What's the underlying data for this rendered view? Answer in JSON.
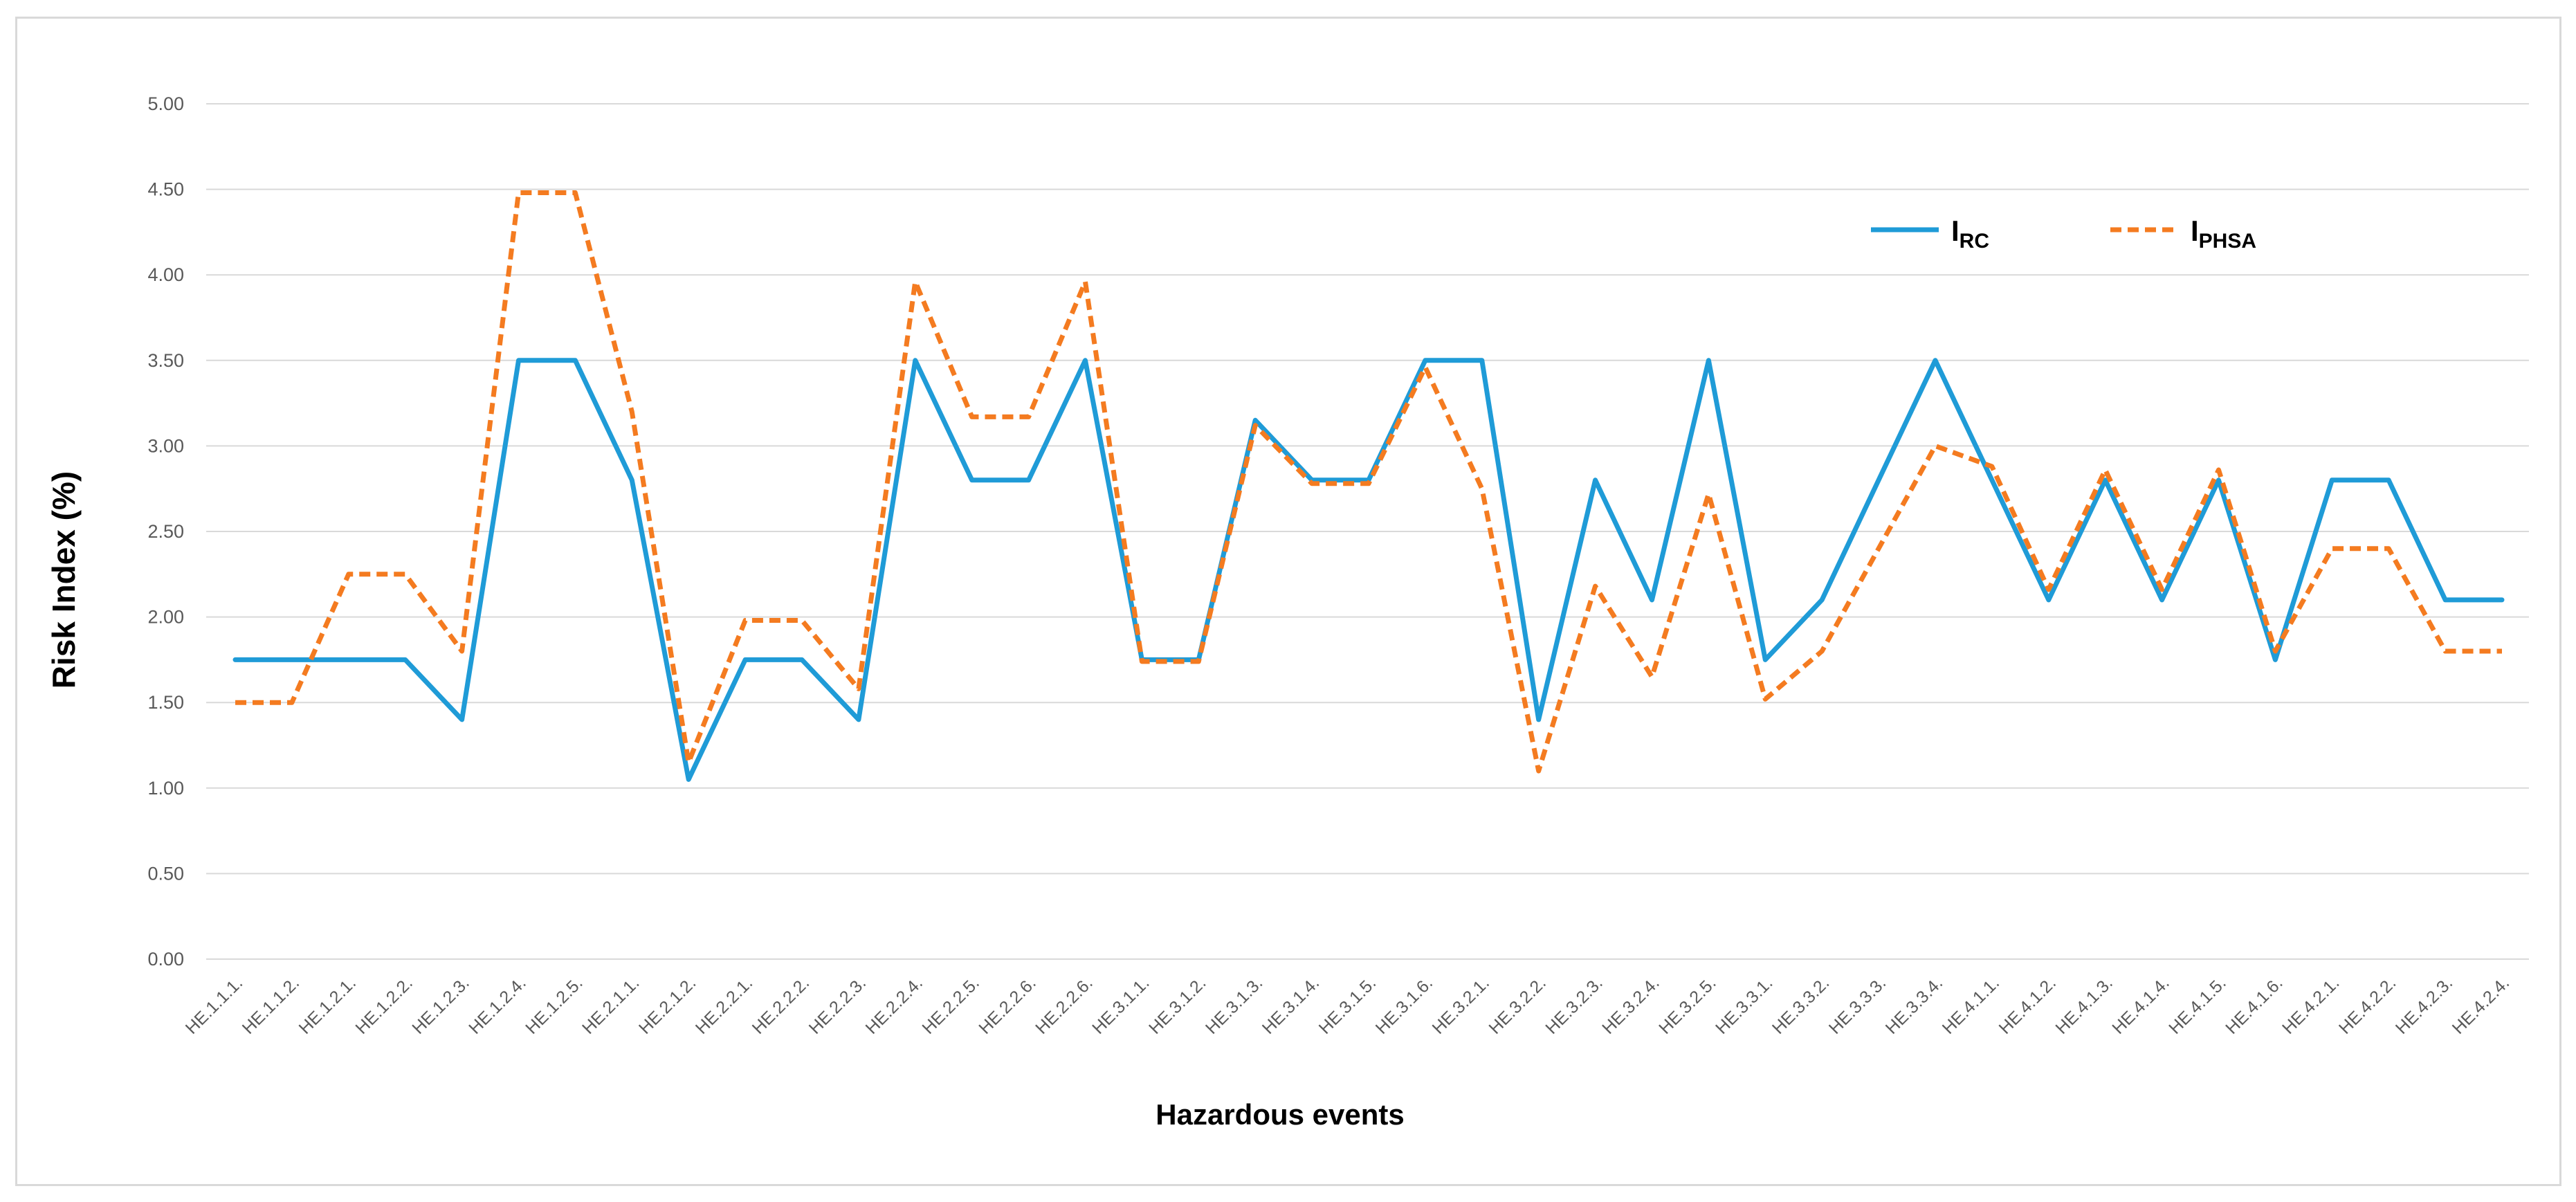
{
  "chart_data": {
    "type": "line",
    "xlabel": "Hazardous events",
    "ylabel": "Risk Index (%)",
    "ylim": [
      0,
      5
    ],
    "yticks": [
      "0.00",
      "0.50",
      "1.00",
      "1.50",
      "2.00",
      "2.50",
      "3.00",
      "3.50",
      "4.00",
      "4.50",
      "5.00"
    ],
    "grid": "horizontal",
    "legend": "top-right",
    "categories": [
      "HE.1.1.1.",
      "HE.1.1.2.",
      "HE.1.2.1.",
      "HE.1.2.2.",
      "HE.1.2.3.",
      "HE.1.2.4.",
      "HE.1.2.5.",
      "HE.2.1.1.",
      "HE.2.1.2.",
      "HE.2.2.1.",
      "HE.2.2.2.",
      "HE.2.2.3.",
      "HE.2.2.4.",
      "HE.2.2.5.",
      "HE.2.2.6.",
      "HE.2.2.6.",
      "HE.3.1.1.",
      "HE.3.1.2.",
      "HE.3.1.3.",
      "HE.3.1.4.",
      "HE.3.1.5.",
      "HE.3.1.6.",
      "HE.3.2.1.",
      "HE.3.2.2.",
      "HE.3.2.3.",
      "HE.3.2.4.",
      "HE.3.2.5.",
      "HE.3.3.1.",
      "HE.3.3.2.",
      "HE.3.3.3.",
      "HE.3.3.4.",
      "HE.4.1.1.",
      "HE.4.1.2.",
      "HE.4.1.3.",
      "HE.4.1.4.",
      "HE.4.1.5.",
      "HE.4.1.6.",
      "HE.4.2.1.",
      "HE.4.2.2.",
      "HE.4.2.3.",
      "HE.4.2.4."
    ],
    "series": [
      {
        "name": "I",
        "name_sub": "RC",
        "color": "#1f9bd7",
        "dash": "solid",
        "values": [
          1.75,
          1.75,
          1.75,
          1.75,
          1.4,
          3.5,
          3.5,
          2.8,
          1.05,
          1.75,
          1.75,
          1.4,
          3.5,
          2.8,
          2.8,
          3.5,
          1.75,
          1.75,
          3.15,
          2.8,
          2.8,
          3.5,
          3.5,
          1.4,
          2.8,
          2.1,
          3.5,
          1.75,
          2.1,
          2.8,
          3.5,
          2.8,
          2.1,
          2.8,
          2.1,
          2.8,
          1.75,
          2.8,
          2.8,
          2.1,
          2.1
        ]
      },
      {
        "name": "I",
        "name_sub": "PHSA",
        "color": "#f47b20",
        "dash": "dashed",
        "values": [
          1.5,
          1.5,
          2.25,
          2.25,
          1.8,
          4.48,
          4.48,
          3.2,
          1.15,
          1.98,
          1.98,
          1.58,
          3.96,
          3.17,
          3.17,
          3.96,
          1.74,
          1.74,
          3.12,
          2.78,
          2.78,
          3.46,
          2.75,
          1.1,
          2.18,
          1.65,
          2.72,
          1.52,
          1.8,
          2.4,
          3.0,
          2.88,
          2.16,
          2.86,
          2.16,
          2.86,
          1.8,
          2.4,
          2.4,
          1.8,
          1.8
        ]
      }
    ]
  }
}
